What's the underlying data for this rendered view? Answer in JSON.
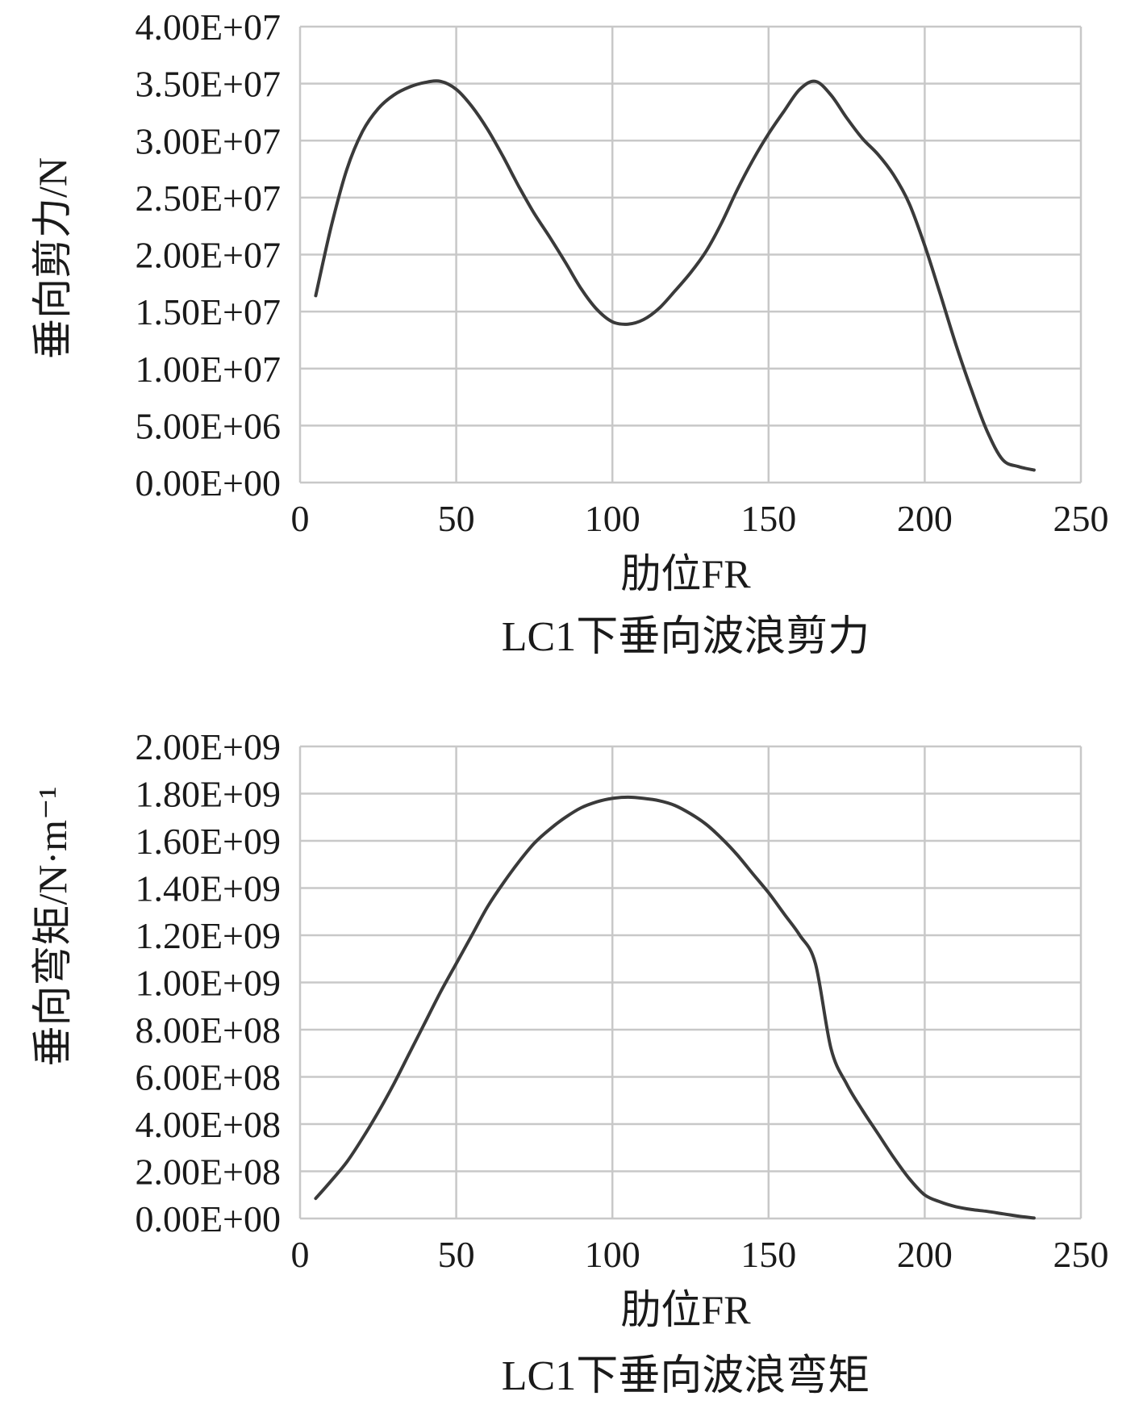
{
  "chart_data": [
    {
      "type": "line",
      "title": "LC1下垂向波浪剪力",
      "xlabel": "肋位FR",
      "ylabel": "垂向剪力/N",
      "xlim": [
        0,
        250
      ],
      "ylim": [
        0,
        40000000
      ],
      "x_ticks": [
        "0",
        "50",
        "100",
        "150",
        "200",
        "250"
      ],
      "y_ticks": [
        "0.00E+00",
        "5.00E+06",
        "1.00E+07",
        "1.50E+07",
        "2.00E+07",
        "2.50E+07",
        "3.00E+07",
        "3.50E+07",
        "4.00E+07"
      ],
      "grid": true,
      "line_color": "#3a3a3a",
      "grid_color": "#c8c8c8",
      "x": [
        5,
        10,
        15,
        20,
        25,
        30,
        35,
        40,
        45,
        50,
        55,
        60,
        65,
        70,
        75,
        80,
        85,
        90,
        95,
        100,
        105,
        110,
        115,
        120,
        125,
        130,
        135,
        140,
        145,
        150,
        155,
        160,
        165,
        170,
        175,
        180,
        185,
        190,
        195,
        200,
        205,
        210,
        215,
        220,
        225,
        230,
        235
      ],
      "values": [
        16400000,
        22500000,
        27500000,
        30800000,
        32800000,
        34000000,
        34700000,
        35100000,
        35200000,
        34500000,
        33000000,
        31000000,
        28600000,
        26000000,
        23600000,
        21500000,
        19300000,
        17000000,
        15200000,
        14100000,
        13900000,
        14300000,
        15300000,
        16800000,
        18400000,
        20300000,
        22800000,
        25700000,
        28300000,
        30600000,
        32600000,
        34500000,
        35200000,
        34000000,
        32000000,
        30200000,
        28800000,
        27000000,
        24500000,
        20800000,
        16500000,
        12100000,
        8100000,
        4500000,
        2000000,
        1400000,
        1100000
      ]
    },
    {
      "type": "line",
      "title": "LC1下垂向波浪弯矩",
      "xlabel": "肋位FR",
      "ylabel": "垂向弯矩/N·m⁻¹",
      "xlim": [
        0,
        250
      ],
      "ylim": [
        0,
        2000000000
      ],
      "x_ticks": [
        "0",
        "50",
        "100",
        "150",
        "200",
        "250"
      ],
      "y_ticks": [
        "0.00E+00",
        "2.00E+08",
        "4.00E+08",
        "6.00E+08",
        "8.00E+08",
        "1.00E+09",
        "1.20E+09",
        "1.40E+09",
        "1.60E+09",
        "1.80E+09",
        "2.00E+09"
      ],
      "grid": true,
      "line_color": "#3a3a3a",
      "grid_color": "#c8c8c8",
      "x": [
        5,
        10,
        15,
        20,
        25,
        30,
        35,
        40,
        45,
        50,
        55,
        60,
        65,
        70,
        75,
        80,
        85,
        90,
        95,
        100,
        105,
        110,
        115,
        120,
        125,
        130,
        135,
        140,
        145,
        150,
        155,
        160,
        165,
        170,
        175,
        180,
        185,
        190,
        195,
        200,
        205,
        210,
        215,
        220,
        225,
        230,
        235
      ],
      "values": [
        85000000,
        160000000,
        240000000,
        340000000,
        450000000,
        570000000,
        700000000,
        830000000,
        960000000,
        1080000000,
        1200000000,
        1320000000,
        1420000000,
        1510000000,
        1590000000,
        1650000000,
        1700000000,
        1740000000,
        1765000000,
        1780000000,
        1785000000,
        1780000000,
        1770000000,
        1750000000,
        1715000000,
        1670000000,
        1610000000,
        1540000000,
        1460000000,
        1380000000,
        1290000000,
        1200000000,
        1080000000,
        720000000,
        570000000,
        460000000,
        360000000,
        260000000,
        170000000,
        100000000,
        70000000,
        50000000,
        38000000,
        30000000,
        20000000,
        10000000,
        2000000
      ]
    }
  ]
}
